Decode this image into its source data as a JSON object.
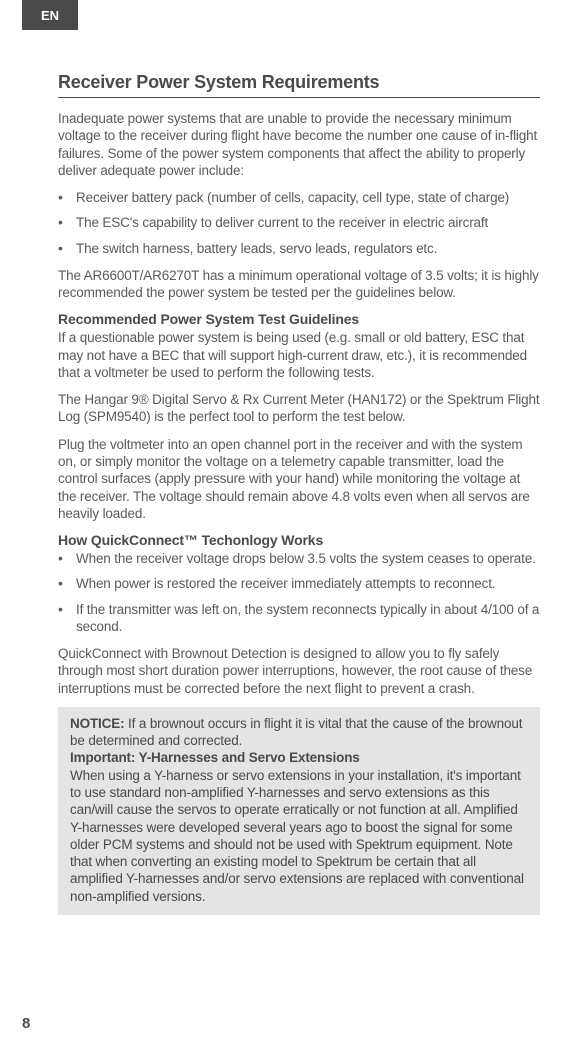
{
  "page": {
    "language_tab": "EN",
    "page_number": "8"
  },
  "heading": "Receiver Power System Requirements",
  "intro": "Inadequate power systems that are unable to provide the necessary minimum voltage to the receiver during flight have become the number one cause of in-flight failures. Some of the power system components that affect the ability to properly deliver adequate power include:",
  "power_bullets": [
    "Receiver battery pack (number of cells, capacity, cell type, state of charge)",
    "The ESC's capability to deliver current to the receiver in electric aircraft",
    "The switch harness, battery leads, servo leads, regulators etc."
  ],
  "voltage_note": "The AR6600T/AR6270T has a minimum operational voltage of 3.5 volts; it is highly recommended the power system be tested per the guidelines below.",
  "section1": {
    "title": "Recommended Power System Test Guidelines",
    "p1": "If a questionable power system is being used (e.g. small or old battery, ESC that may not have a BEC that will support high-current draw, etc.), it is recommended that a voltmeter be used to perform the following tests.",
    "p2": "The Hangar 9® Digital Servo & Rx Current Meter (HAN172) or the Spektrum Flight Log (SPM9540) is the perfect tool to perform the test below.",
    "p3": "Plug the voltmeter into an open channel port in the receiver and with the system on, or simply monitor the voltage on a telemetry capable transmitter, load the control surfaces (apply pressure with your hand) while monitoring the voltage at the receiver. The voltage should remain above 4.8 volts even when all servos are heavily loaded."
  },
  "section2": {
    "title": "How QuickConnect™ Techonlogy Works",
    "bullets": [
      "When the receiver voltage drops below 3.5 volts the system ceases to operate.",
      "When power is restored the receiver immediately attempts to reconnect.",
      "If the transmitter was left on, the system reconnects typically in about 4/100 of a second."
    ],
    "p1": "QuickConnect with Brownout Detection is designed to allow you to fly safely through most short duration power interruptions, however, the root cause of these interruptions must be corrected before the next flight to prevent a crash."
  },
  "notice": {
    "label": "NOTICE:",
    "text1": " If a brownout occurs in flight it is vital that the cause of the brownout be determined and corrected.",
    "subtitle": "Important: Y-Harnesses and Servo Extensions",
    "text2": "When using a Y-harness or servo extensions in your installation, it's important to use standard non-amplified Y-harnesses and servo extensions as this can/will cause the servos to operate erratically or not function at all. Amplified Y-harnesses were developed several years ago to boost the signal for some older PCM systems and should not be used with Spektrum equipment. Note that when converting an existing model to Spektrum be certain that all amplified Y-harnesses and/or servo extensions are replaced with conventional non-amplified versions."
  }
}
